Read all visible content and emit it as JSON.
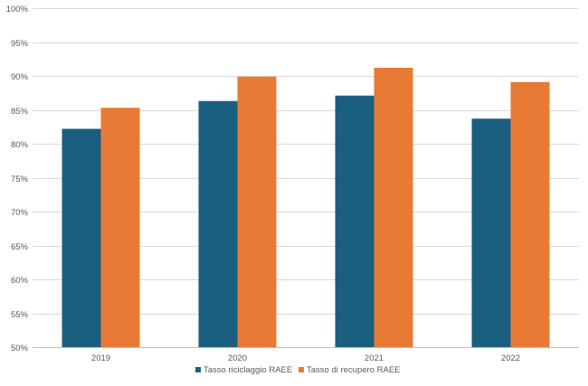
{
  "chart_data": {
    "type": "bar",
    "categories": [
      "2019",
      "2020",
      "2021",
      "2022"
    ],
    "series": [
      {
        "name": "Tasso riciclaggio RAEE",
        "values": [
          82.2,
          86.3,
          87.1,
          83.7
        ],
        "color": "#1a5f80"
      },
      {
        "name": "Tasso di recupero RAEE",
        "values": [
          85.3,
          89.9,
          91.2,
          89.1
        ],
        "color": "#e87a35"
      }
    ],
    "ylim": [
      50,
      100
    ],
    "yticks": [
      50,
      55,
      60,
      65,
      70,
      75,
      80,
      85,
      90,
      95,
      100
    ],
    "ytick_labels": [
      "50%",
      "55%",
      "60%",
      "65%",
      "70%",
      "75%",
      "80%",
      "85%",
      "90%",
      "95%",
      "100%"
    ],
    "grid": true,
    "legend_position": "bottom"
  }
}
